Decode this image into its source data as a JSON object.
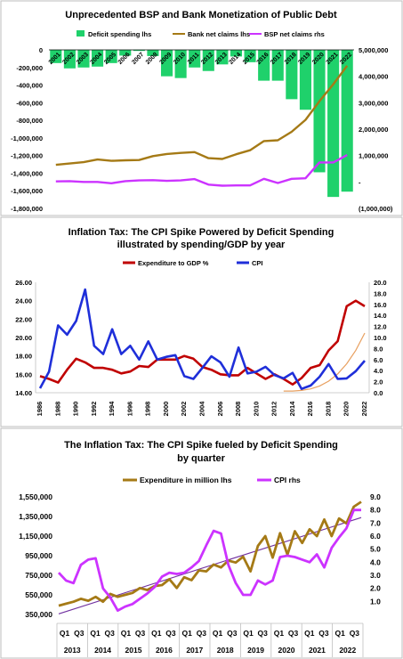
{
  "chart_data": [
    {
      "type": "bar",
      "title": "Unprecedented BSP and Bank Monetization of Public Debt",
      "categories": [
        "2001",
        "2002",
        "2003",
        "2004",
        "2005",
        "2006",
        "2007",
        "2008",
        "2009",
        "2010",
        "2011",
        "2012",
        "2013",
        "2014",
        "2015",
        "2016",
        "2017",
        "2018",
        "2019",
        "2020",
        "2021",
        "2022"
      ],
      "ylim_left": [
        -1800000,
        0
      ],
      "yticks_left": [
        "0",
        "-200,000",
        "-400,000",
        "-600,000",
        "-800,000",
        "-1,000,000",
        "-1,200,000",
        "-1,400,000",
        "-1,600,000",
        "-1,800,000"
      ],
      "ylim_right": [
        -1000000,
        5000000
      ],
      "yticks_right": [
        "5,000,000",
        "4,000,000",
        "3,000,000",
        "2,000,000",
        "1,000,000",
        "-",
        "(1,000,000)"
      ],
      "legend": [
        "Deficit spending lhs",
        "Bank net claims lhs",
        "BSP net claims rhs"
      ],
      "series": [
        {
          "name": "Deficit spending lhs",
          "axis": "left",
          "color": "#1fd16b",
          "values": [
            -150000,
            -210000,
            -200000,
            -190000,
            -150000,
            -65000,
            -12000,
            -70000,
            -300000,
            -320000,
            -200000,
            -240000,
            -165000,
            -75000,
            -140000,
            -350000,
            -350000,
            -560000,
            -680000,
            -1390000,
            -1670000,
            -1610000
          ]
        },
        {
          "name": "Bank net claims lhs",
          "axis": "right",
          "color": "#a57a16",
          "values": [
            650000,
            700000,
            750000,
            850000,
            800000,
            820000,
            830000,
            980000,
            1060000,
            1100000,
            1130000,
            900000,
            870000,
            1050000,
            1200000,
            1550000,
            1580000,
            1900000,
            2350000,
            3050000,
            3700000,
            4400000
          ]
        },
        {
          "name": "BSP net claims rhs",
          "axis": "right",
          "color": "#cc33ff",
          "values": [
            20000,
            30000,
            0,
            0,
            -50000,
            30000,
            60000,
            70000,
            40000,
            60000,
            110000,
            -100000,
            -140000,
            -130000,
            -130000,
            120000,
            -40000,
            120000,
            140000,
            740000,
            740000,
            1020000
          ]
        }
      ]
    },
    {
      "type": "line",
      "title": "Inflation Tax: The CPI Spike Powered by Deficit Spending",
      "subtitle": "illustrated by spending/GDP by year",
      "x": [
        1986,
        1987,
        1988,
        1989,
        1990,
        1991,
        1992,
        1993,
        1994,
        1995,
        1996,
        1997,
        1998,
        1999,
        2000,
        2001,
        2002,
        2003,
        2004,
        2005,
        2006,
        2007,
        2008,
        2009,
        2010,
        2011,
        2012,
        2013,
        2014,
        2015,
        2016,
        2017,
        2018,
        2019,
        2020,
        2021,
        2022
      ],
      "xticks": [
        "1986",
        "1988",
        "1990",
        "1992",
        "1994",
        "1996",
        "1998",
        "2000",
        "2002",
        "2004",
        "2006",
        "2008",
        "2010",
        "2012",
        "2014",
        "2016",
        "2018",
        "2020",
        "2022"
      ],
      "ylim_left": [
        14,
        26
      ],
      "yticks_left": [
        "26.00",
        "24.00",
        "22.00",
        "20.00",
        "18.00",
        "16.00",
        "14.00"
      ],
      "ylim_right": [
        0,
        20
      ],
      "yticks_right": [
        "20.0",
        "18.0",
        "16.0",
        "14.0",
        "12.0",
        "10.0",
        "8.0",
        "6.0",
        "4.0",
        "2.0",
        "0.0"
      ],
      "legend": [
        "Expenditure to GDP %",
        "CPI"
      ],
      "series": [
        {
          "name": "Expenditure to GDP %",
          "axis": "left",
          "color": "#c00000",
          "values": [
            15.8,
            15.5,
            15.1,
            16.5,
            17.7,
            17.3,
            16.7,
            16.7,
            16.5,
            16.1,
            16.3,
            16.9,
            16.8,
            17.6,
            17.6,
            17.6,
            18.0,
            17.7,
            16.8,
            16.5,
            16.0,
            15.9,
            15.9,
            16.7,
            16.1,
            15.5,
            16.0,
            15.5,
            14.9,
            15.6,
            16.7,
            17.0,
            18.6,
            19.6,
            23.4,
            24.0,
            23.4
          ]
        },
        {
          "name": "CPI",
          "axis": "right",
          "color": "#1f2fd9",
          "values": [
            0.8,
            3.8,
            12.2,
            10.5,
            13.0,
            18.7,
            8.5,
            7.0,
            11.5,
            7.0,
            8.5,
            6.0,
            9.3,
            6.0,
            6.5,
            6.8,
            3.0,
            2.5,
            4.5,
            6.6,
            5.5,
            2.9,
            8.2,
            3.5,
            3.8,
            4.7,
            3.2,
            2.6,
            3.6,
            0.7,
            1.3,
            2.9,
            5.2,
            2.5,
            2.6,
            3.9,
            5.8
          ]
        }
      ],
      "trend_color": "#e8a060"
    },
    {
      "type": "line",
      "title": "The Inflation Tax: The CPI Spike fueled by Deficit Spending",
      "subtitle": "by quarter",
      "quarter_labels": [
        "Q1",
        "Q3",
        "Q1",
        "Q3",
        "Q1",
        "Q3",
        "Q1",
        "Q3",
        "Q1",
        "Q3",
        "Q1",
        "Q3",
        "Q1",
        "Q3",
        "Q1",
        "Q3",
        "Q1",
        "Q3",
        "Q1",
        "Q3"
      ],
      "years": [
        "2013",
        "2014",
        "2015",
        "2016",
        "2017",
        "2018",
        "2019",
        "2020",
        "2021",
        "2022"
      ],
      "ylim_left": [
        350000,
        1550000
      ],
      "yticks_left": [
        "1,550,000",
        "1,350,000",
        "1,150,000",
        "950,000",
        "750,000",
        "550,000",
        "350,000"
      ],
      "ylim_right": [
        0,
        9
      ],
      "yticks_right": [
        "9.0",
        "8.0",
        "7.0",
        "6.0",
        "5.0",
        "4.0",
        "3.0",
        "2.0",
        "1.0"
      ],
      "legend": [
        "Expenditure in million lhs",
        "CPI rhs"
      ],
      "series": [
        {
          "name": "Expenditure in million lhs",
          "axis": "left",
          "color": "#a57a16",
          "values": [
            440000,
            460000,
            480000,
            510000,
            490000,
            530000,
            480000,
            560000,
            530000,
            550000,
            570000,
            620000,
            600000,
            640000,
            650000,
            710000,
            620000,
            730000,
            700000,
            800000,
            790000,
            860000,
            830000,
            900000,
            880000,
            940000,
            790000,
            1050000,
            1150000,
            930000,
            1180000,
            960000,
            1200000,
            1080000,
            1220000,
            1150000,
            1320000,
            1150000,
            1330000,
            1280000,
            1450000,
            1500000
          ]
        },
        {
          "name": "CPI rhs",
          "axis": "right",
          "color": "#cc33ff",
          "values": [
            3.2,
            2.6,
            2.4,
            3.8,
            4.2,
            4.3,
            2.0,
            1.3,
            0.3,
            0.6,
            0.8,
            1.2,
            1.6,
            2.1,
            2.9,
            3.2,
            3.1,
            3.2,
            3.6,
            4.1,
            5.3,
            6.4,
            6.2,
            3.8,
            2.4,
            1.5,
            1.5,
            2.6,
            2.3,
            2.6,
            4.4,
            4.5,
            4.4,
            4.2,
            4.0,
            4.6,
            3.6,
            5.1,
            5.9,
            6.6,
            8.0,
            8.0
          ]
        }
      ],
      "trend_color": "#7030a0"
    }
  ]
}
